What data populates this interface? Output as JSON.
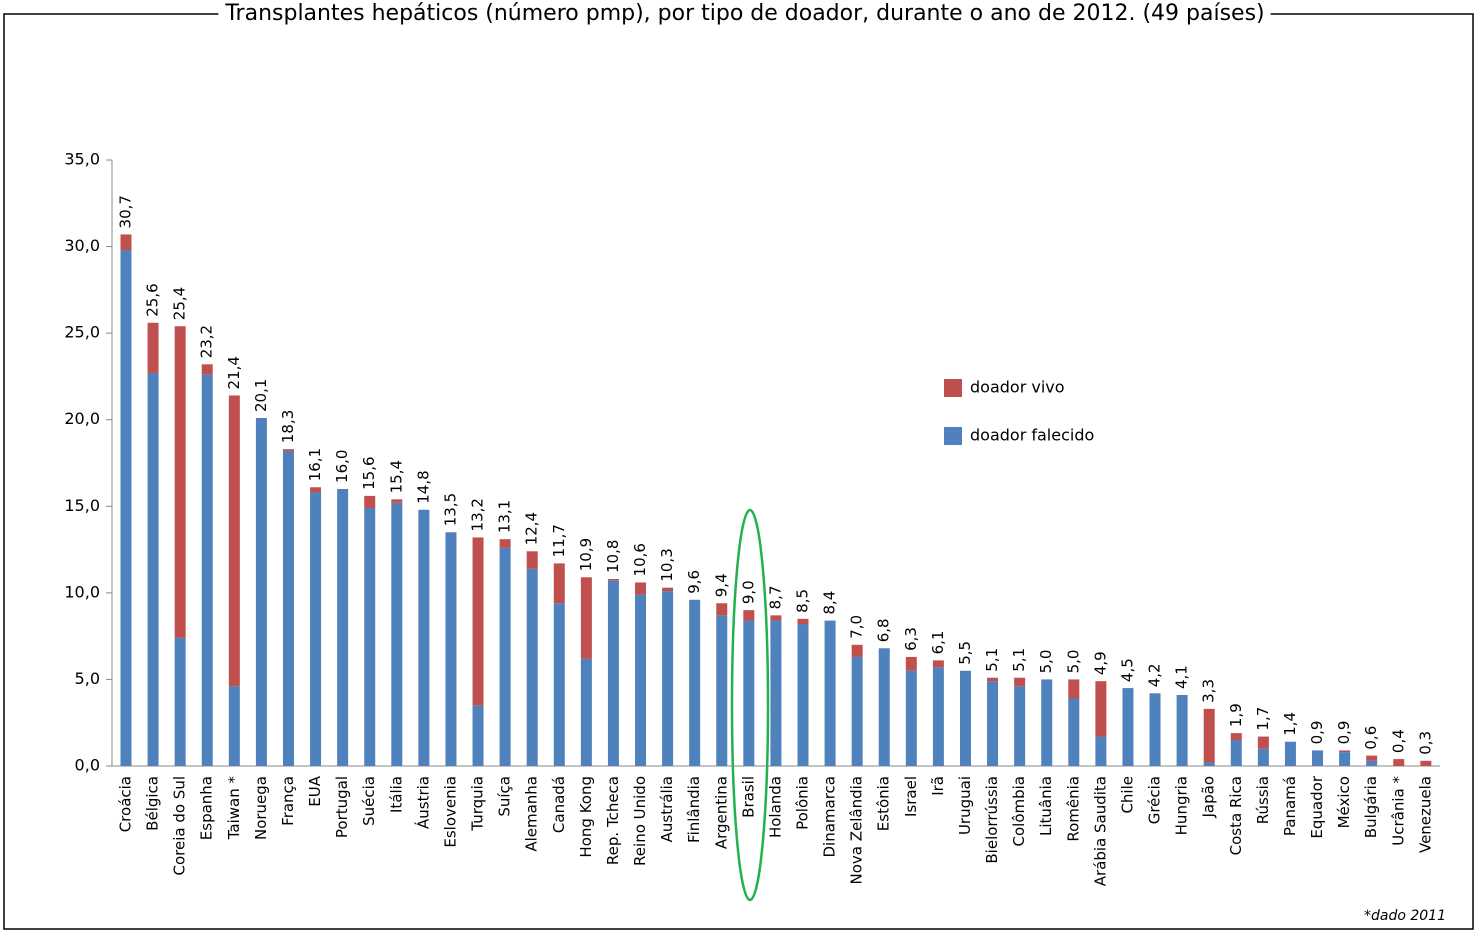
{
  "chart_data": {
    "type": "stacked_bar",
    "title": "Transplantes hepáticos (número pmp), por tipo de doador, durante o ano de 2012. (49 países)",
    "footnote": "*dado 2011",
    "categories": [
      "Croácia",
      "Bélgica",
      "Coreia do Sul",
      "Espanha",
      "Taiwan *",
      "Noruega",
      "França",
      "EUA",
      "Portugal",
      "Suécia",
      "Itália",
      "Áustria",
      "Eslovenia",
      "Turquia",
      "Suíça",
      "Alemanha",
      "Canadá",
      "Hong Kong",
      "Rep. Tcheca",
      "Reino Unido",
      "Austrália",
      "Finlândia",
      "Argentina",
      "Brasil",
      "Holanda",
      "Polônia",
      "Dinamarca",
      "Nova Zelândia",
      "Estônia",
      "Israel",
      "Irã",
      "Uruguai",
      "Bielorrússia",
      "Colômbia",
      "Lituânia",
      "Romênia",
      "Arábia Saudita",
      "Chile",
      "Grécia",
      "Hungria",
      "Japão",
      "Costa Rica",
      "Rússia",
      "Panamá",
      "Equador",
      "México",
      "Bulgária",
      "Ucrânia *",
      "Venezuela"
    ],
    "series": [
      {
        "name": "doador falecido",
        "color": "#4f81bd",
        "values": [
          29.8,
          22.7,
          7.4,
          22.6,
          4.6,
          20.1,
          18.2,
          15.8,
          16.0,
          14.9,
          15.2,
          14.8,
          13.5,
          3.5,
          12.6,
          11.4,
          9.4,
          6.2,
          10.7,
          9.9,
          10.1,
          9.6,
          8.7,
          8.4,
          8.4,
          8.2,
          8.4,
          6.3,
          6.8,
          5.5,
          5.7,
          5.5,
          4.9,
          4.6,
          5.0,
          3.9,
          1.7,
          4.5,
          4.2,
          4.1,
          0.2,
          1.5,
          1.0,
          1.4,
          0.9,
          0.8,
          0.3,
          0,
          0
        ]
      },
      {
        "name": "doador vivo",
        "color": "#c0504d",
        "values": [
          0.9,
          2.9,
          18.0,
          0.6,
          16.8,
          0,
          0.1,
          0.3,
          0,
          0.7,
          0.2,
          0,
          0,
          9.7,
          0.5,
          1.0,
          2.3,
          4.7,
          0.1,
          0.7,
          0.2,
          0,
          0.7,
          0.6,
          0.3,
          0.3,
          0,
          0.7,
          0,
          0.8,
          0.4,
          0,
          0.2,
          0.5,
          0,
          1.1,
          3.2,
          0,
          0,
          0,
          3.1,
          0.4,
          0.7,
          0,
          0,
          0.1,
          0.3,
          0.4,
          0.3
        ]
      }
    ],
    "totals": [
      30.7,
      25.6,
      25.4,
      23.2,
      21.4,
      20.1,
      18.3,
      16.1,
      16.0,
      15.6,
      15.4,
      14.8,
      13.5,
      13.2,
      13.1,
      12.4,
      11.7,
      10.9,
      10.8,
      10.6,
      10.3,
      9.6,
      9.4,
      9.0,
      8.7,
      8.5,
      8.4,
      7.0,
      6.8,
      6.3,
      6.1,
      5.5,
      5.1,
      5.1,
      5.0,
      5.0,
      4.9,
      4.5,
      4.2,
      4.1,
      3.3,
      1.9,
      1.7,
      1.4,
      0.9,
      0.9,
      0.6,
      0.4,
      0.3
    ],
    "total_labels": [
      "30,7",
      "25,6",
      "25,4",
      "23,2",
      "21,4",
      "20,1",
      "18,3",
      "16,1",
      "16,0",
      "15,6",
      "15,4",
      "14,8",
      "13,5",
      "13,2",
      "13,1",
      "12,4",
      "11,7",
      "10,9",
      "10,8",
      "10,6",
      "10,3",
      "9,6",
      "9,4",
      "9,0",
      "8,7",
      "8,5",
      "8,4",
      "7,0",
      "6,8",
      "6,3",
      "6,1",
      "5,5",
      "5,1",
      "5,1",
      "5,0",
      "5,0",
      "4,9",
      "4,5",
      "4,2",
      "4,1",
      "3,3",
      "1,9",
      "1,7",
      "1,4",
      "0,9",
      "0,9",
      "0,6",
      "0,4",
      "0,3"
    ],
    "ylim": [
      0,
      35
    ],
    "yticks": [
      {
        "value": 0,
        "label": "0,0"
      },
      {
        "value": 5,
        "label": "5,0"
      },
      {
        "value": 10,
        "label": "10,0"
      },
      {
        "value": 15,
        "label": "15,0"
      },
      {
        "value": 20,
        "label": "20,0"
      },
      {
        "value": 25,
        "label": "25,0"
      },
      {
        "value": 30,
        "label": "30,0"
      },
      {
        "value": 35,
        "label": "35,0"
      }
    ],
    "grid": false
  }
}
